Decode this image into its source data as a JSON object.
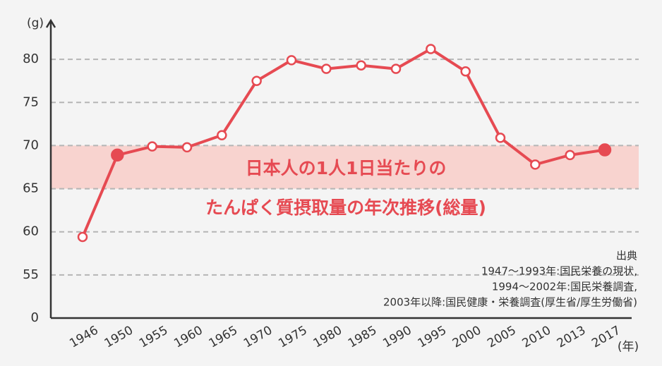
{
  "chart_data": {
    "type": "line",
    "title_lines": [
      "日本人の1人1日当たりの",
      "たんぱく質摂取量の年次推移(総量)"
    ],
    "y_label": "(g)",
    "x_label": "(年)",
    "source_lines": [
      "出典",
      "1947〜1993年:国民栄養の現状,",
      "1994〜2002年:国民栄養調査,",
      "2003年以降:国民健康・栄養調査(厚生省/厚生労働省)"
    ],
    "categories": [
      "1946",
      "1950",
      "1955",
      "1960",
      "1965",
      "1970",
      "1975",
      "1980",
      "1985",
      "1990",
      "1995",
      "2000",
      "2005",
      "2010",
      "2013",
      "2017"
    ],
    "values": [
      59.4,
      68.9,
      69.9,
      69.8,
      71.2,
      77.5,
      79.9,
      78.9,
      79.3,
      78.9,
      81.2,
      78.6,
      70.9,
      67.8,
      68.9,
      69.5
    ],
    "color": "#e64a52",
    "highlight_points": [
      1,
      15
    ],
    "band": [
      65,
      70
    ],
    "band_color": "#f8d3cf",
    "ylim": [
      0,
      85
    ],
    "y_break": [
      0,
      55
    ],
    "yticks": [
      0,
      55,
      60,
      65,
      70,
      75,
      80
    ],
    "grid": true
  }
}
